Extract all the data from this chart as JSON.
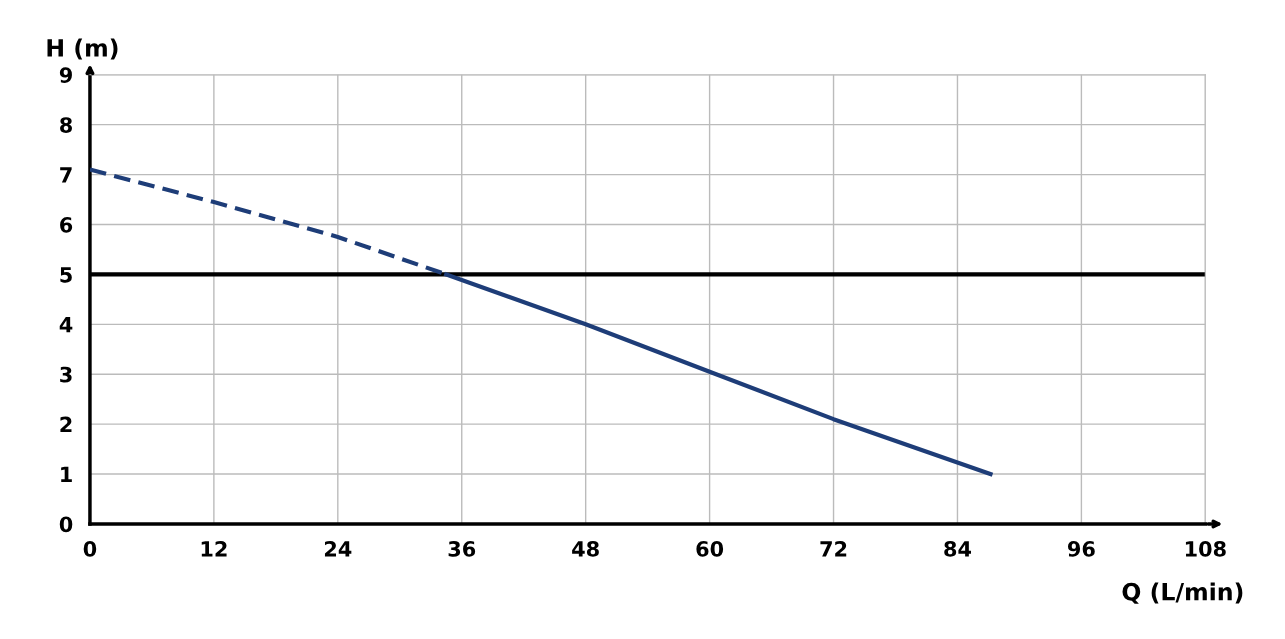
{
  "chart_data": {
    "type": "line",
    "xlabel": "Q (L/min)",
    "ylabel": "H (m)",
    "xlim": [
      0,
      108
    ],
    "xticks": [
      0,
      12,
      24,
      36,
      48,
      60,
      72,
      84,
      96,
      108
    ],
    "ylim": [
      0,
      9
    ],
    "yticks": [
      0,
      1,
      2,
      3,
      4,
      5,
      6,
      7,
      8,
      9
    ],
    "grid": true,
    "legend": false,
    "marker": "none",
    "series": [
      {
        "color": "#1e3d78",
        "line_style": "dashed",
        "x": [
          0,
          12,
          24,
          34.5
        ],
        "values": [
          7.1,
          6.45,
          5.75,
          5.0
        ]
      },
      {
        "color": "#1e3d78",
        "line_style": "solid",
        "x": [
          34.5,
          48,
          60,
          72,
          87.2
        ],
        "values": [
          5.0,
          4.0,
          3.05,
          2.1,
          1.0
        ]
      }
    ],
    "ref_lines": [
      {
        "axis": "y",
        "value": 5,
        "color": "#000000",
        "line_style": "solid"
      }
    ]
  }
}
